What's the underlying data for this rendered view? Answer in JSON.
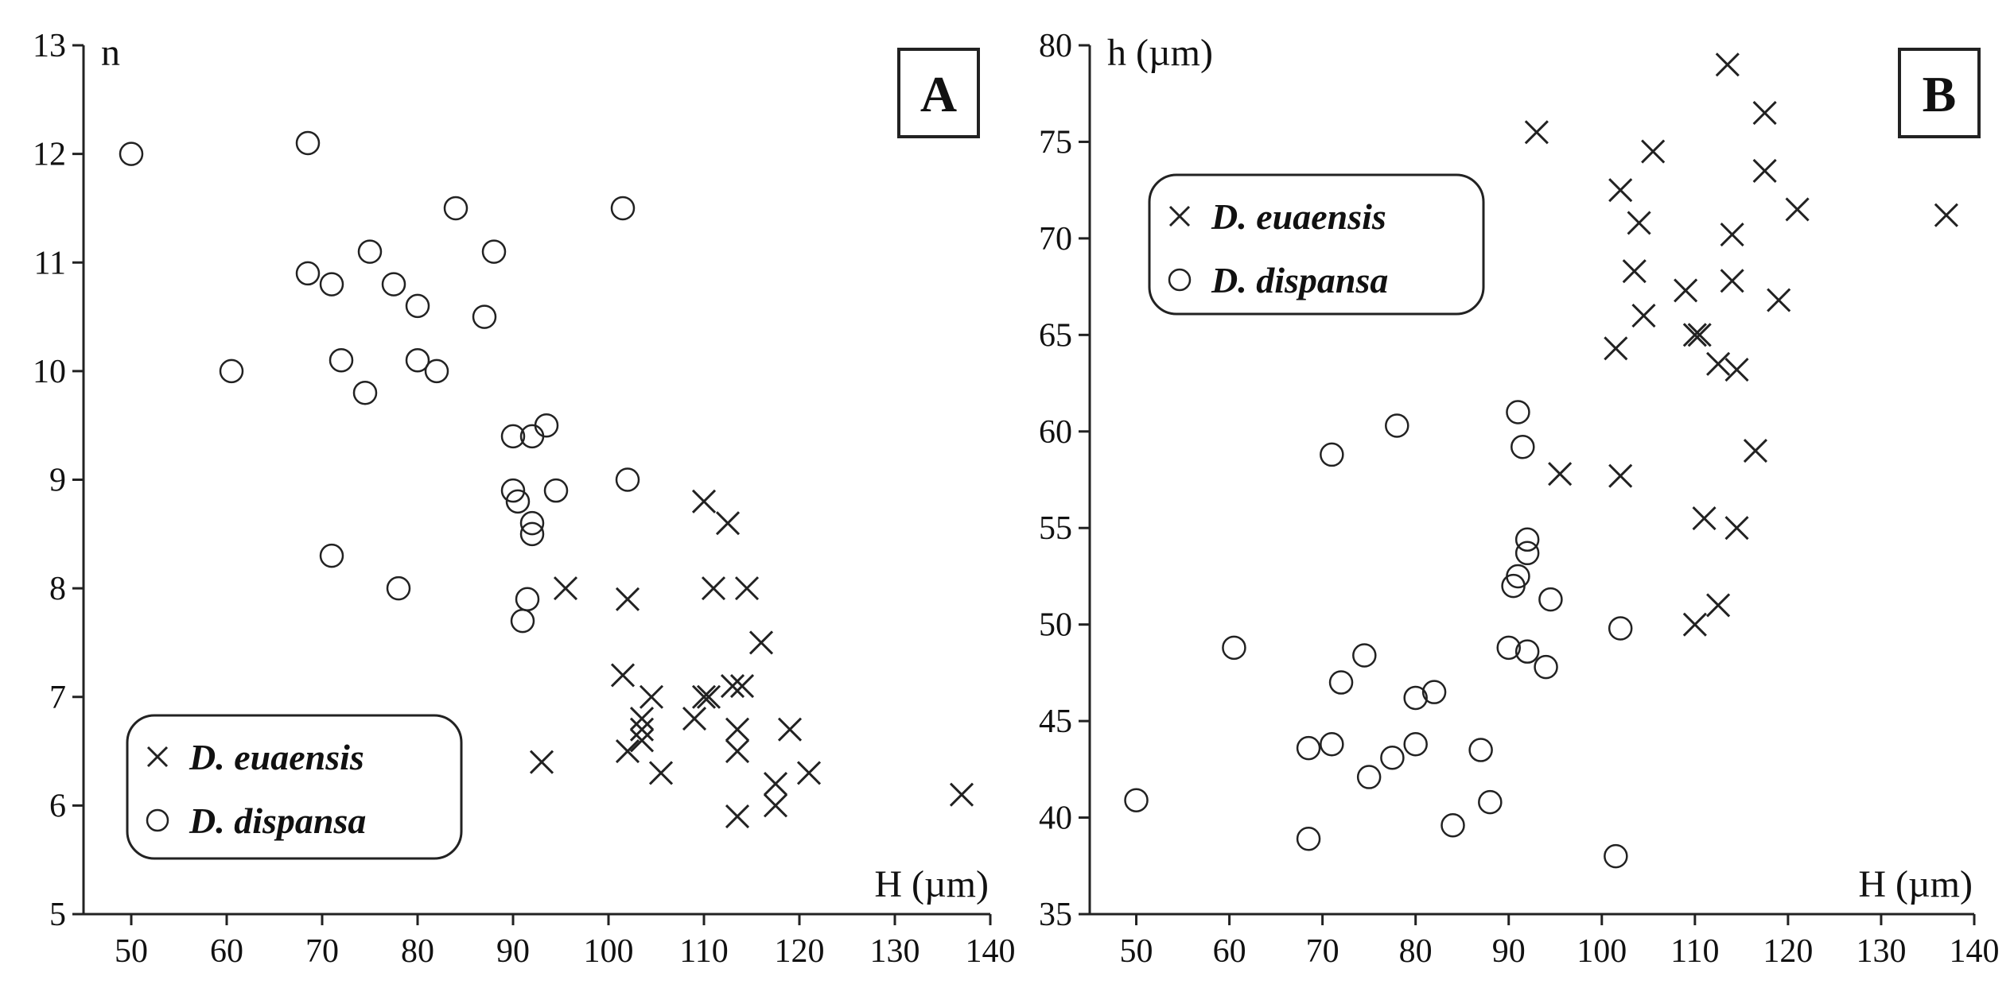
{
  "chart_data": [
    {
      "panel": "A",
      "type": "scatter",
      "ylabel": "n",
      "xlabel": "H (µm)",
      "xlim": [
        45,
        140
      ],
      "ylim": [
        5,
        13
      ],
      "xticks": [
        50,
        60,
        70,
        80,
        90,
        100,
        110,
        120,
        130,
        140
      ],
      "yticks": [
        5,
        6,
        7,
        8,
        9,
        10,
        11,
        12,
        13
      ],
      "grid": false,
      "legend_position": "bottom-left",
      "series": [
        {
          "name": "D. euaensis",
          "marker": "x",
          "points": [
            [
              110,
              8.8
            ],
            [
              112.5,
              8.6
            ],
            [
              102,
              7.9
            ],
            [
              95.5,
              8.0
            ],
            [
              111,
              8.0
            ],
            [
              114.5,
              8.0
            ],
            [
              116,
              7.5
            ],
            [
              101.5,
              7.2
            ],
            [
              110,
              7.0
            ],
            [
              110.5,
              7.0
            ],
            [
              113,
              7.1
            ],
            [
              114,
              7.1
            ],
            [
              104.5,
              7.0
            ],
            [
              103.5,
              6.8
            ],
            [
              103.5,
              6.7
            ],
            [
              109,
              6.8
            ],
            [
              119,
              6.7
            ],
            [
              113.5,
              6.7
            ],
            [
              103.5,
              6.6
            ],
            [
              102,
              6.5
            ],
            [
              113.5,
              6.5
            ],
            [
              93,
              6.4
            ],
            [
              105.5,
              6.3
            ],
            [
              121,
              6.3
            ],
            [
              117.5,
              6.2
            ],
            [
              117.5,
              6.0
            ],
            [
              113.5,
              5.9
            ],
            [
              137,
              6.1
            ]
          ]
        },
        {
          "name": "D. dispansa",
          "marker": "o",
          "points": [
            [
              50,
              12.0
            ],
            [
              68.5,
              12.1
            ],
            [
              84,
              11.5
            ],
            [
              101.5,
              11.5
            ],
            [
              75,
              11.1
            ],
            [
              88,
              11.1
            ],
            [
              68.5,
              10.9
            ],
            [
              71,
              10.8
            ],
            [
              77.5,
              10.8
            ],
            [
              80,
              10.6
            ],
            [
              87,
              10.5
            ],
            [
              60.5,
              10.0
            ],
            [
              72,
              10.1
            ],
            [
              80,
              10.1
            ],
            [
              82,
              10.0
            ],
            [
              74.5,
              9.8
            ],
            [
              93.5,
              9.5
            ],
            [
              90,
              9.4
            ],
            [
              92,
              9.4
            ],
            [
              102,
              9.0
            ],
            [
              90,
              8.9
            ],
            [
              94.5,
              8.9
            ],
            [
              90.5,
              8.8
            ],
            [
              92,
              8.6
            ],
            [
              92,
              8.5
            ],
            [
              71,
              8.3
            ],
            [
              78,
              8.0
            ],
            [
              91.5,
              7.9
            ],
            [
              91,
              7.7
            ]
          ]
        }
      ]
    },
    {
      "panel": "B",
      "type": "scatter",
      "ylabel": "h (µm)",
      "xlabel": "H (µm)",
      "xlim": [
        45,
        140
      ],
      "ylim": [
        35,
        80
      ],
      "xticks": [
        50,
        60,
        70,
        80,
        90,
        100,
        110,
        120,
        130,
        140
      ],
      "yticks": [
        35,
        40,
        45,
        50,
        55,
        60,
        65,
        70,
        75,
        80
      ],
      "grid": false,
      "legend_position": "top-left",
      "series": [
        {
          "name": "D. euaensis",
          "marker": "x",
          "points": [
            [
              113.5,
              79.0
            ],
            [
              117.5,
              76.5
            ],
            [
              93,
              75.5
            ],
            [
              105.5,
              74.5
            ],
            [
              117.5,
              73.5
            ],
            [
              102,
              72.5
            ],
            [
              121,
              71.5
            ],
            [
              137,
              71.2
            ],
            [
              104,
              70.8
            ],
            [
              114,
              70.2
            ],
            [
              103.5,
              68.3
            ],
            [
              109,
              67.3
            ],
            [
              114,
              67.8
            ],
            [
              119,
              66.8
            ],
            [
              104.5,
              66.0
            ],
            [
              101.5,
              64.3
            ],
            [
              110,
              65.0
            ],
            [
              110.5,
              65.0
            ],
            [
              112.5,
              63.5
            ],
            [
              114.5,
              63.2
            ],
            [
              116.5,
              59.0
            ],
            [
              95.5,
              57.8
            ],
            [
              102,
              57.7
            ],
            [
              111,
              55.5
            ],
            [
              114.5,
              55.0
            ],
            [
              112.5,
              51.0
            ],
            [
              110,
              50.0
            ]
          ]
        },
        {
          "name": "D. dispansa",
          "marker": "o",
          "points": [
            [
              78,
              60.3
            ],
            [
              71,
              58.8
            ],
            [
              91,
              61.0
            ],
            [
              91.5,
              59.2
            ],
            [
              92,
              54.4
            ],
            [
              92,
              53.7
            ],
            [
              91,
              52.5
            ],
            [
              90.5,
              52.0
            ],
            [
              94.5,
              51.3
            ],
            [
              102,
              49.8
            ],
            [
              60.5,
              48.8
            ],
            [
              90,
              48.8
            ],
            [
              92,
              48.6
            ],
            [
              94,
              47.8
            ],
            [
              74.5,
              48.4
            ],
            [
              72,
              47.0
            ],
            [
              80,
              46.2
            ],
            [
              82,
              46.5
            ],
            [
              75,
              42.1
            ],
            [
              68.5,
              43.6
            ],
            [
              71,
              43.8
            ],
            [
              77.5,
              43.1
            ],
            [
              80,
              43.8
            ],
            [
              87,
              43.5
            ],
            [
              50,
              40.9
            ],
            [
              88,
              40.8
            ],
            [
              84,
              39.6
            ],
            [
              68.5,
              38.9
            ],
            [
              101.5,
              38.0
            ]
          ]
        }
      ]
    }
  ]
}
